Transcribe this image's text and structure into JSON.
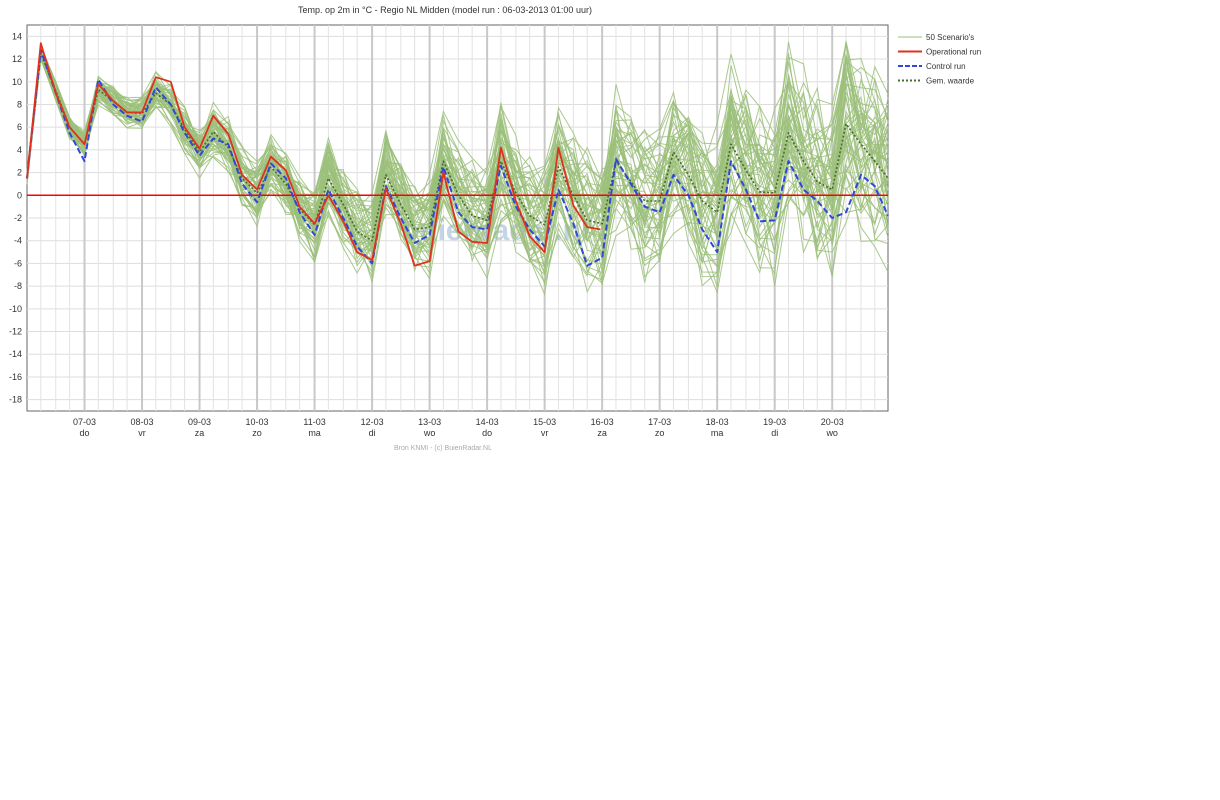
{
  "chart_data": {
    "type": "line",
    "title": "Temp. op 2m in °C - Regio NL Midden (model run : 06-03-2013 01:00 uur)",
    "source": "Bron KNMI - (c) BuienRadar.NL",
    "watermark": "buienradar.nl",
    "ylim": [
      -19,
      15
    ],
    "y_ticks": [
      14,
      12,
      10,
      8,
      6,
      4,
      2,
      0,
      -2,
      -4,
      -6,
      -8,
      -10,
      -12,
      -14,
      -16,
      -18
    ],
    "x_range_days": [
      6.0,
      20.97
    ],
    "x_ticks": [
      {
        "date": "07-03",
        "day": "do"
      },
      {
        "date": "08-03",
        "day": "vr"
      },
      {
        "date": "09-03",
        "day": "za"
      },
      {
        "date": "10-03",
        "day": "zo"
      },
      {
        "date": "11-03",
        "day": "ma"
      },
      {
        "date": "12-03",
        "day": "di"
      },
      {
        "date": "13-03",
        "day": "wo"
      },
      {
        "date": "14-03",
        "day": "do"
      },
      {
        "date": "15-03",
        "day": "vr"
      },
      {
        "date": "16-03",
        "day": "za"
      },
      {
        "date": "17-03",
        "day": "zo"
      },
      {
        "date": "18-03",
        "day": "ma"
      },
      {
        "date": "19-03",
        "day": "di"
      },
      {
        "date": "20-03",
        "day": "wo"
      }
    ],
    "zero_line": {
      "value": 0,
      "color": "#ff0000"
    },
    "legend": {
      "placement": "right",
      "items": [
        {
          "label": "50 Scenario's",
          "color": "#9bc07a",
          "style": "solid"
        },
        {
          "label": "Operational run",
          "color": "#e03020",
          "style": "solid"
        },
        {
          "label": "Control run",
          "color": "#3048d8",
          "style": "dashed"
        },
        {
          "label": "Gem. waarde",
          "color": "#4a6a30",
          "style": "dotted"
        }
      ]
    },
    "grid": true,
    "series": [
      {
        "name": "Operational run",
        "color": "#e03020",
        "x": [
          6.0,
          6.24,
          6.5,
          6.74,
          7.0,
          7.24,
          7.5,
          7.74,
          8.0,
          8.24,
          8.5,
          8.74,
          9.0,
          9.24,
          9.5,
          9.74,
          10.0,
          10.24,
          10.5,
          10.74,
          11.0,
          11.24,
          11.5,
          11.74,
          12.0,
          12.24,
          12.5,
          12.74,
          13.0,
          13.24,
          13.5,
          13.74,
          14.0,
          14.24,
          14.5,
          14.74,
          15.0,
          15.24,
          15.5,
          15.74,
          15.97
        ],
        "y": [
          1.5,
          13.4,
          9.0,
          6.0,
          4.5,
          9.8,
          8.3,
          7.3,
          7.3,
          10.4,
          10.0,
          6.0,
          4.1,
          7.0,
          5.4,
          1.8,
          0.5,
          3.4,
          2.2,
          -1.0,
          -2.5,
          0.0,
          -2.3,
          -5.0,
          -5.7,
          0.6,
          -2.5,
          -6.2,
          -5.8,
          2.0,
          -3.2,
          -4.1,
          -4.2,
          4.2,
          -0.5,
          -3.6,
          -5.0,
          4.2,
          -0.9,
          -2.8,
          -3.0
        ]
      },
      {
        "name": "Control run",
        "color": "#3048d8",
        "x": [
          6.0,
          6.24,
          6.5,
          6.74,
          7.0,
          7.24,
          7.5,
          7.74,
          8.0,
          8.24,
          8.5,
          8.74,
          9.0,
          9.24,
          9.5,
          9.74,
          10.0,
          10.24,
          10.5,
          10.74,
          11.0,
          11.24,
          11.5,
          11.74,
          12.0,
          12.24,
          12.5,
          12.74,
          13.0,
          13.24,
          13.5,
          13.74,
          14.0,
          14.24,
          14.5,
          14.74,
          15.0,
          15.24,
          15.5,
          15.74,
          16.0,
          16.24,
          16.5,
          16.74,
          17.0,
          17.24,
          17.5,
          17.74,
          18.0,
          18.24,
          18.5,
          18.74,
          19.0,
          19.24,
          19.5,
          19.74,
          20.0,
          20.24,
          20.5,
          20.74,
          20.97
        ],
        "y": [
          1.5,
          12.8,
          9.0,
          5.5,
          3.0,
          10.2,
          8.0,
          7.0,
          6.5,
          9.5,
          8.0,
          5.5,
          3.5,
          5.0,
          4.5,
          1.0,
          -0.6,
          2.8,
          1.5,
          -1.5,
          -3.5,
          0.5,
          -2.0,
          -4.5,
          -6.0,
          0.8,
          -2.0,
          -4.2,
          -3.5,
          2.5,
          -1.5,
          -2.8,
          -3.0,
          2.6,
          -1.0,
          -3.0,
          -4.5,
          0.5,
          -2.5,
          -6.2,
          -5.5,
          3.2,
          1.0,
          -1.0,
          -1.5,
          1.8,
          0.0,
          -3.0,
          -5.0,
          3.0,
          0.5,
          -2.3,
          -2.2,
          3.0,
          0.5,
          -0.5,
          -2.0,
          -1.5,
          1.8,
          0.8,
          -1.8
        ]
      },
      {
        "name": "Gem. waarde",
        "color": "#4a6a30",
        "x": [
          6.0,
          6.24,
          6.5,
          6.74,
          7.0,
          7.24,
          7.5,
          7.74,
          8.0,
          8.24,
          8.5,
          8.74,
          9.0,
          9.24,
          9.5,
          9.74,
          10.0,
          10.24,
          10.5,
          10.74,
          11.0,
          11.24,
          11.5,
          11.74,
          12.0,
          12.24,
          12.5,
          12.74,
          13.0,
          13.24,
          13.5,
          13.74,
          14.0,
          14.24,
          14.5,
          14.74,
          15.0,
          15.24,
          15.5,
          15.74,
          16.0,
          16.24,
          16.5,
          16.74,
          17.0,
          17.24,
          17.5,
          17.74,
          18.0,
          18.24,
          18.5,
          18.74,
          19.0,
          19.24,
          19.5,
          19.74,
          20.0,
          20.24,
          20.5,
          20.74,
          20.97
        ],
        "y": [
          1.5,
          12.5,
          9.2,
          6.0,
          4.5,
          9.3,
          8.3,
          7.3,
          7.2,
          9.0,
          8.0,
          5.8,
          3.8,
          5.6,
          4.2,
          1.5,
          0.2,
          2.5,
          1.0,
          -1.2,
          -2.6,
          1.5,
          -0.8,
          -3.2,
          -4.0,
          1.8,
          -0.8,
          -3.0,
          -2.8,
          3.0,
          0.0,
          -1.8,
          -2.2,
          3.0,
          0.2,
          -1.8,
          -2.6,
          2.5,
          0.0,
          -2.2,
          -2.5,
          3.0,
          1.2,
          -0.5,
          -0.5,
          3.8,
          1.8,
          -0.5,
          -1.5,
          4.5,
          2.2,
          0.3,
          0.2,
          5.5,
          3.0,
          1.2,
          0.5,
          6.3,
          4.5,
          3.0,
          1.5
        ]
      }
    ]
  }
}
